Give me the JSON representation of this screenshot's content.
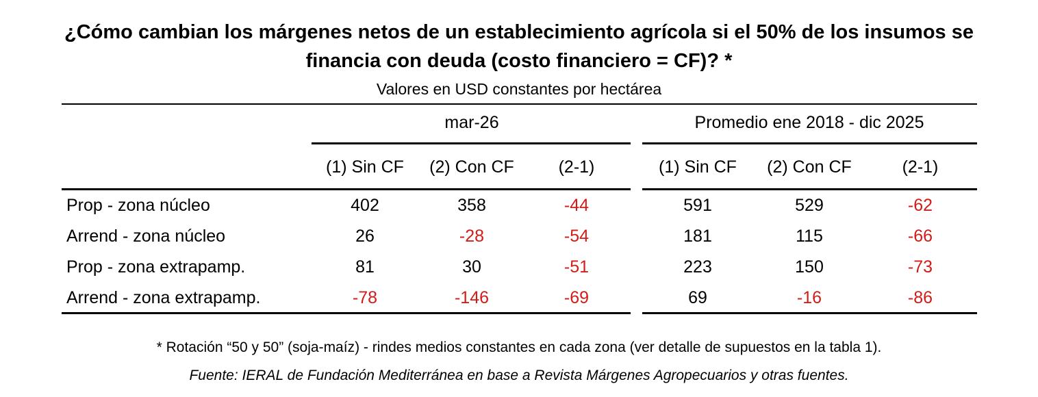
{
  "title_line1": "¿Cómo cambian los márgenes netos de un establecimiento agrícola si el 50% de los insumos se",
  "title_line2": "financia con deuda (costo financiero = CF)? *",
  "subtitle": "Valores en USD constantes por hectárea",
  "groups": [
    "mar-26",
    "Promedio ene 2018 - dic 2025"
  ],
  "columns": [
    "(1) Sin CF",
    "(2) Con CF",
    "(2-1)",
    "(1) Sin CF",
    "(2) Con CF",
    "(2-1)"
  ],
  "rows": [
    {
      "label": "Prop - zona núcleo",
      "values": [
        "402",
        "358",
        "-44",
        "591",
        "529",
        "-62"
      ]
    },
    {
      "label": "Arrend - zona núcleo",
      "values": [
        "26",
        "-28",
        "-54",
        "181",
        "115",
        "-66"
      ]
    },
    {
      "label": "Prop - zona extrapamp.",
      "values": [
        "81",
        "30",
        "-51",
        "223",
        "150",
        "-73"
      ]
    },
    {
      "label": "Arrend - zona extrapamp.",
      "values": [
        "-78",
        "-146",
        "-69",
        "69",
        "-16",
        "-86"
      ]
    }
  ],
  "footnote": "* Rotación “50 y 50” (soja-maíz) - rindes medios constantes en cada zona (ver detalle de supuestos en la tabla 1).",
  "source": "Fuente: IERAL de Fundación Mediterránea en base a Revista Márgenes Agropecuarios y otras fuentes.",
  "colors": {
    "negative": "#d21c17",
    "text": "#000000"
  }
}
